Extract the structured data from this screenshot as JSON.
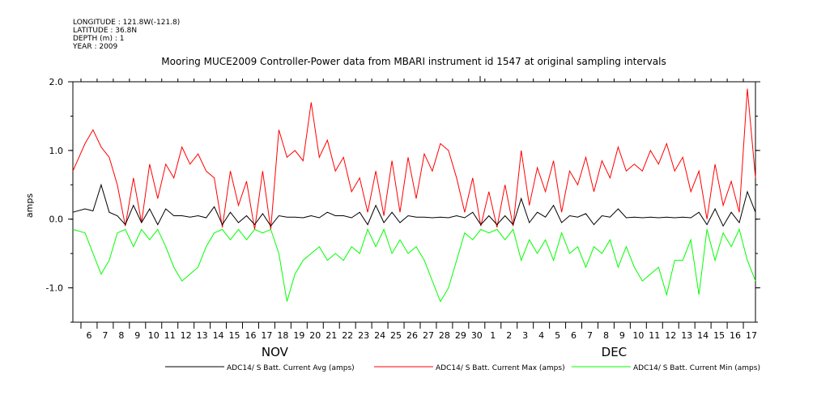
{
  "header": {
    "longitude": "LONGITUDE : 121.8W(-121.8)",
    "latitude": "LATITUDE : 36.8N",
    "depth": "DEPTH (m) : 1",
    "year": "YEAR : 2009"
  },
  "chart_data": {
    "type": "line",
    "title": "Mooring MUCE2009 Controller-Power data from MBARI instrument id 1547 at original sampling intervals",
    "ylabel": "amps",
    "xlabel": "",
    "ylim": [
      -1.5,
      2.0
    ],
    "yticks": [
      -1.0,
      0.0,
      1.0,
      2.0
    ],
    "ytick_labels": [
      "-1.0",
      "0.0",
      "1.0",
      "2.0"
    ],
    "x_start_day": "2009-11-05T12:00",
    "x_end_day": "2009-12-17T18:00",
    "x_tick_labels": [
      "6",
      "7",
      "8",
      "9",
      "10",
      "11",
      "12",
      "13",
      "14",
      "15",
      "16",
      "17",
      "18",
      "19",
      "20",
      "21",
      "22",
      "23",
      "24",
      "25",
      "26",
      "27",
      "28",
      "29",
      "30",
      "1",
      "2",
      "3",
      "4",
      "5",
      "6",
      "7",
      "8",
      "9",
      "10",
      "11",
      "12",
      "13",
      "14",
      "15",
      "16",
      "17"
    ],
    "x_tick_dates": [
      "2009-11-06",
      "2009-11-07",
      "2009-11-08",
      "2009-11-09",
      "2009-11-10",
      "2009-11-11",
      "2009-11-12",
      "2009-11-13",
      "2009-11-14",
      "2009-11-15",
      "2009-11-16",
      "2009-11-17",
      "2009-11-18",
      "2009-11-19",
      "2009-11-20",
      "2009-11-21",
      "2009-11-22",
      "2009-11-23",
      "2009-11-24",
      "2009-11-25",
      "2009-11-26",
      "2009-11-27",
      "2009-11-28",
      "2009-11-29",
      "2009-11-30",
      "2009-12-01",
      "2009-12-02",
      "2009-12-03",
      "2009-12-04",
      "2009-12-05",
      "2009-12-06",
      "2009-12-07",
      "2009-12-08",
      "2009-12-09",
      "2009-12-10",
      "2009-12-11",
      "2009-12-12",
      "2009-12-13",
      "2009-12-14",
      "2009-12-15",
      "2009-12-16",
      "2009-12-17"
    ],
    "month_labels": [
      {
        "label": "NOV",
        "date": "2009-11-18"
      },
      {
        "label": "DEC",
        "date": "2009-12-09"
      }
    ],
    "series": [
      {
        "name": "ADC14/ S Batt. Current Avg (amps)",
        "color": "#000000",
        "x": [
          "2009-11-05T12:00",
          "2009-11-06T06:00",
          "2009-11-06T18:00",
          "2009-11-07T06:00",
          "2009-11-07T18:00",
          "2009-11-08T06:00",
          "2009-11-08T18:00",
          "2009-11-09T06:00",
          "2009-11-09T18:00",
          "2009-11-10T06:00",
          "2009-11-10T18:00",
          "2009-11-11T06:00",
          "2009-11-11T18:00",
          "2009-11-12T06:00",
          "2009-11-12T18:00",
          "2009-11-13T06:00",
          "2009-11-13T18:00",
          "2009-11-14T06:00",
          "2009-11-14T18:00",
          "2009-11-15T06:00",
          "2009-11-15T18:00",
          "2009-11-16T06:00",
          "2009-11-16T18:00",
          "2009-11-17T06:00",
          "2009-11-17T18:00",
          "2009-11-18T06:00",
          "2009-11-18T18:00",
          "2009-11-19T06:00",
          "2009-11-19T18:00",
          "2009-11-20T06:00",
          "2009-11-20T18:00",
          "2009-11-21T06:00",
          "2009-11-21T18:00",
          "2009-11-22T06:00",
          "2009-11-22T18:00",
          "2009-11-23T06:00",
          "2009-11-23T18:00",
          "2009-11-24T06:00",
          "2009-11-24T18:00",
          "2009-11-25T06:00",
          "2009-11-25T18:00",
          "2009-11-26T06:00",
          "2009-11-26T18:00",
          "2009-11-27T06:00",
          "2009-11-27T18:00",
          "2009-11-28T06:00",
          "2009-11-28T18:00",
          "2009-11-29T06:00",
          "2009-11-29T18:00",
          "2009-11-30T06:00",
          "2009-11-30T18:00",
          "2009-12-01T06:00",
          "2009-12-01T18:00",
          "2009-12-02T06:00",
          "2009-12-02T18:00",
          "2009-12-03T06:00",
          "2009-12-03T18:00",
          "2009-12-04T06:00",
          "2009-12-04T18:00",
          "2009-12-05T06:00",
          "2009-12-05T18:00",
          "2009-12-06T06:00",
          "2009-12-06T18:00",
          "2009-12-07T06:00",
          "2009-12-07T18:00",
          "2009-12-08T06:00",
          "2009-12-08T18:00",
          "2009-12-09T06:00",
          "2009-12-09T18:00",
          "2009-12-10T06:00",
          "2009-12-10T18:00",
          "2009-12-11T06:00",
          "2009-12-11T18:00",
          "2009-12-12T06:00",
          "2009-12-12T18:00",
          "2009-12-13T06:00",
          "2009-12-13T18:00",
          "2009-12-14T06:00",
          "2009-12-14T18:00",
          "2009-12-15T06:00",
          "2009-12-15T18:00",
          "2009-12-16T06:00",
          "2009-12-16T18:00",
          "2009-12-17T06:00",
          "2009-12-17T18:00"
        ],
        "values": [
          0.1,
          0.15,
          0.12,
          0.5,
          0.1,
          0.05,
          -0.08,
          0.2,
          -0.05,
          0.15,
          -0.08,
          0.15,
          0.05,
          0.05,
          0.03,
          0.05,
          0.02,
          0.18,
          -0.08,
          0.1,
          -0.05,
          0.05,
          -0.08,
          0.08,
          -0.1,
          0.05,
          0.03,
          0.03,
          0.02,
          0.05,
          0.02,
          0.1,
          0.05,
          0.05,
          0.02,
          0.1,
          -0.08,
          0.2,
          -0.05,
          0.1,
          -0.05,
          0.05,
          0.03,
          0.03,
          0.02,
          0.03,
          0.02,
          0.05,
          0.02,
          0.1,
          -0.08,
          0.05,
          -0.08,
          0.05,
          -0.08,
          0.3,
          -0.05,
          0.1,
          0.03,
          0.2,
          -0.05,
          0.05,
          0.03,
          0.08,
          -0.08,
          0.05,
          0.03,
          0.15,
          0.02,
          0.03,
          0.02,
          0.03,
          0.02,
          0.03,
          0.02,
          0.03,
          0.02,
          0.1,
          -0.08,
          0.15,
          -0.1,
          0.1,
          -0.05,
          0.4,
          0.1
        ]
      },
      {
        "name": "ADC14/ S Batt. Current Max (amps)",
        "color": "#ff0000",
        "x": [
          "2009-11-05T12:00",
          "2009-11-06T06:00",
          "2009-11-06T18:00",
          "2009-11-07T06:00",
          "2009-11-07T18:00",
          "2009-11-08T06:00",
          "2009-11-08T18:00",
          "2009-11-09T06:00",
          "2009-11-09T18:00",
          "2009-11-10T06:00",
          "2009-11-10T18:00",
          "2009-11-11T06:00",
          "2009-11-11T18:00",
          "2009-11-12T06:00",
          "2009-11-12T18:00",
          "2009-11-13T06:00",
          "2009-11-13T18:00",
          "2009-11-14T06:00",
          "2009-11-14T18:00",
          "2009-11-15T06:00",
          "2009-11-15T18:00",
          "2009-11-16T06:00",
          "2009-11-16T18:00",
          "2009-11-17T06:00",
          "2009-11-17T18:00",
          "2009-11-18T06:00",
          "2009-11-18T18:00",
          "2009-11-19T06:00",
          "2009-11-19T18:00",
          "2009-11-20T06:00",
          "2009-11-20T18:00",
          "2009-11-21T06:00",
          "2009-11-21T18:00",
          "2009-11-22T06:00",
          "2009-11-22T18:00",
          "2009-11-23T06:00",
          "2009-11-23T18:00",
          "2009-11-24T06:00",
          "2009-11-24T18:00",
          "2009-11-25T06:00",
          "2009-11-25T18:00",
          "2009-11-26T06:00",
          "2009-11-26T18:00",
          "2009-11-27T06:00",
          "2009-11-27T18:00",
          "2009-11-28T06:00",
          "2009-11-28T18:00",
          "2009-11-29T06:00",
          "2009-11-29T18:00",
          "2009-11-30T06:00",
          "2009-11-30T18:00",
          "2009-12-01T06:00",
          "2009-12-01T18:00",
          "2009-12-02T06:00",
          "2009-12-02T18:00",
          "2009-12-03T06:00",
          "2009-12-03T18:00",
          "2009-12-04T06:00",
          "2009-12-04T18:00",
          "2009-12-05T06:00",
          "2009-12-05T18:00",
          "2009-12-06T06:00",
          "2009-12-06T18:00",
          "2009-12-07T06:00",
          "2009-12-07T18:00",
          "2009-12-08T06:00",
          "2009-12-08T18:00",
          "2009-12-09T06:00",
          "2009-12-09T18:00",
          "2009-12-10T06:00",
          "2009-12-10T18:00",
          "2009-12-11T06:00",
          "2009-12-11T18:00",
          "2009-12-12T06:00",
          "2009-12-12T18:00",
          "2009-12-13T06:00",
          "2009-12-13T18:00",
          "2009-12-14T06:00",
          "2009-12-14T18:00",
          "2009-12-15T06:00",
          "2009-12-15T18:00",
          "2009-12-16T06:00",
          "2009-12-16T18:00",
          "2009-12-17T06:00",
          "2009-12-17T18:00"
        ],
        "values": [
          0.7,
          1.1,
          1.3,
          1.05,
          0.9,
          0.5,
          -0.1,
          0.6,
          -0.05,
          0.8,
          0.3,
          0.8,
          0.6,
          1.05,
          0.8,
          0.95,
          0.7,
          0.6,
          -0.12,
          0.7,
          0.2,
          0.55,
          -0.15,
          0.7,
          -0.15,
          1.3,
          0.9,
          1.0,
          0.85,
          1.7,
          0.9,
          1.15,
          0.7,
          0.9,
          0.4,
          0.6,
          0.1,
          0.7,
          0.05,
          0.85,
          0.1,
          0.9,
          0.3,
          0.95,
          0.7,
          1.1,
          1.0,
          0.6,
          0.1,
          0.6,
          -0.1,
          0.4,
          -0.12,
          0.5,
          -0.1,
          1.0,
          0.2,
          0.75,
          0.4,
          0.85,
          0.1,
          0.7,
          0.5,
          0.9,
          0.4,
          0.85,
          0.6,
          1.05,
          0.7,
          0.8,
          0.7,
          1.0,
          0.8,
          1.1,
          0.7,
          0.9,
          0.4,
          0.7,
          0.0,
          0.8,
          0.2,
          0.55,
          0.1,
          1.9,
          0.6
        ]
      },
      {
        "name": "ADC14/ S Batt. Current Min (amps)",
        "color": "#00ff00",
        "x": [
          "2009-11-05T12:00",
          "2009-11-06T06:00",
          "2009-11-06T18:00",
          "2009-11-07T06:00",
          "2009-11-07T18:00",
          "2009-11-08T06:00",
          "2009-11-08T18:00",
          "2009-11-09T06:00",
          "2009-11-09T18:00",
          "2009-11-10T06:00",
          "2009-11-10T18:00",
          "2009-11-11T06:00",
          "2009-11-11T18:00",
          "2009-11-12T06:00",
          "2009-11-12T18:00",
          "2009-11-13T06:00",
          "2009-11-13T18:00",
          "2009-11-14T06:00",
          "2009-11-14T18:00",
          "2009-11-15T06:00",
          "2009-11-15T18:00",
          "2009-11-16T06:00",
          "2009-11-16T18:00",
          "2009-11-17T06:00",
          "2009-11-17T18:00",
          "2009-11-18T06:00",
          "2009-11-18T18:00",
          "2009-11-19T06:00",
          "2009-11-19T18:00",
          "2009-11-20T06:00",
          "2009-11-20T18:00",
          "2009-11-21T06:00",
          "2009-11-21T18:00",
          "2009-11-22T06:00",
          "2009-11-22T18:00",
          "2009-11-23T06:00",
          "2009-11-23T18:00",
          "2009-11-24T06:00",
          "2009-11-24T18:00",
          "2009-11-25T06:00",
          "2009-11-25T18:00",
          "2009-11-26T06:00",
          "2009-11-26T18:00",
          "2009-11-27T06:00",
          "2009-11-27T18:00",
          "2009-11-28T06:00",
          "2009-11-28T18:00",
          "2009-11-29T06:00",
          "2009-11-29T18:00",
          "2009-11-30T06:00",
          "2009-11-30T18:00",
          "2009-12-01T06:00",
          "2009-12-01T18:00",
          "2009-12-02T06:00",
          "2009-12-02T18:00",
          "2009-12-03T06:00",
          "2009-12-03T18:00",
          "2009-12-04T06:00",
          "2009-12-04T18:00",
          "2009-12-05T06:00",
          "2009-12-05T18:00",
          "2009-12-06T06:00",
          "2009-12-06T18:00",
          "2009-12-07T06:00",
          "2009-12-07T18:00",
          "2009-12-08T06:00",
          "2009-12-08T18:00",
          "2009-12-09T06:00",
          "2009-12-09T18:00",
          "2009-12-10T06:00",
          "2009-12-10T18:00",
          "2009-12-11T06:00",
          "2009-12-11T18:00",
          "2009-12-12T06:00",
          "2009-12-12T18:00",
          "2009-12-13T06:00",
          "2009-12-13T18:00",
          "2009-12-14T06:00",
          "2009-12-14T18:00",
          "2009-12-15T06:00",
          "2009-12-15T18:00",
          "2009-12-16T06:00",
          "2009-12-16T18:00",
          "2009-12-17T06:00",
          "2009-12-17T18:00"
        ],
        "values": [
          -0.15,
          -0.2,
          -0.5,
          -0.8,
          -0.6,
          -0.2,
          -0.15,
          -0.4,
          -0.15,
          -0.3,
          -0.15,
          -0.4,
          -0.7,
          -0.9,
          -0.8,
          -0.7,
          -0.4,
          -0.2,
          -0.15,
          -0.3,
          -0.15,
          -0.3,
          -0.15,
          -0.2,
          -0.15,
          -0.5,
          -1.2,
          -0.8,
          -0.6,
          -0.5,
          -0.4,
          -0.6,
          -0.5,
          -0.6,
          -0.4,
          -0.5,
          -0.15,
          -0.4,
          -0.15,
          -0.5,
          -0.3,
          -0.5,
          -0.4,
          -0.6,
          -0.9,
          -1.2,
          -1.0,
          -0.6,
          -0.2,
          -0.3,
          -0.15,
          -0.2,
          -0.15,
          -0.3,
          -0.15,
          -0.6,
          -0.3,
          -0.5,
          -0.3,
          -0.6,
          -0.2,
          -0.5,
          -0.4,
          -0.7,
          -0.4,
          -0.5,
          -0.3,
          -0.7,
          -0.4,
          -0.7,
          -0.9,
          -0.8,
          -0.7,
          -1.1,
          -0.6,
          -0.6,
          -0.3,
          -1.1,
          -0.15,
          -0.6,
          -0.2,
          -0.4,
          -0.15,
          -0.6,
          -0.9
        ]
      }
    ]
  }
}
